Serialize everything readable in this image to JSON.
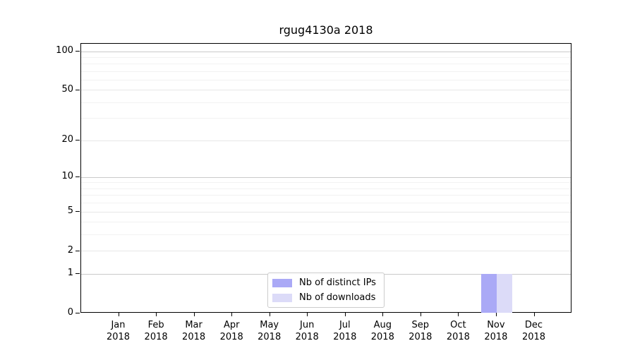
{
  "chart_data": {
    "type": "bar",
    "title": "rgug4130a 2018",
    "categories": [
      "Jan",
      "Feb",
      "Mar",
      "Apr",
      "May",
      "Jun",
      "Jul",
      "Aug",
      "Sep",
      "Oct",
      "Nov",
      "Dec"
    ],
    "year_label": "2018",
    "series": [
      {
        "name": "Nb of distinct IPs",
        "color": "#aaa9f6",
        "values": [
          0,
          0,
          0,
          0,
          0,
          0,
          0,
          0,
          0,
          0,
          1,
          0
        ]
      },
      {
        "name": "Nb of downloads",
        "color": "#dcdbf8",
        "values": [
          0,
          0,
          0,
          0,
          0,
          0,
          0,
          0,
          0,
          0,
          1,
          0
        ]
      }
    ],
    "y_axis": {
      "scale": "log10(value+1)",
      "tick_values": [
        0,
        1,
        2,
        5,
        10,
        20,
        50,
        100
      ],
      "major_gridline_values": [
        1,
        10,
        100
      ],
      "mid_gridline_values": [
        2,
        5,
        20,
        50
      ],
      "minor_gridline_values": [
        3,
        4,
        6,
        7,
        8,
        9,
        30,
        40,
        60,
        70,
        80,
        90
      ],
      "top_value": 113
    },
    "grid": "horizontal",
    "legend_position": "bottom-center",
    "colors": {
      "major_gridline": "#cacaca",
      "mid_gridline": "#e7e7e7",
      "minor_gridline": "#f2f2f2",
      "spine": "#000000",
      "background": "#ffffff"
    }
  }
}
